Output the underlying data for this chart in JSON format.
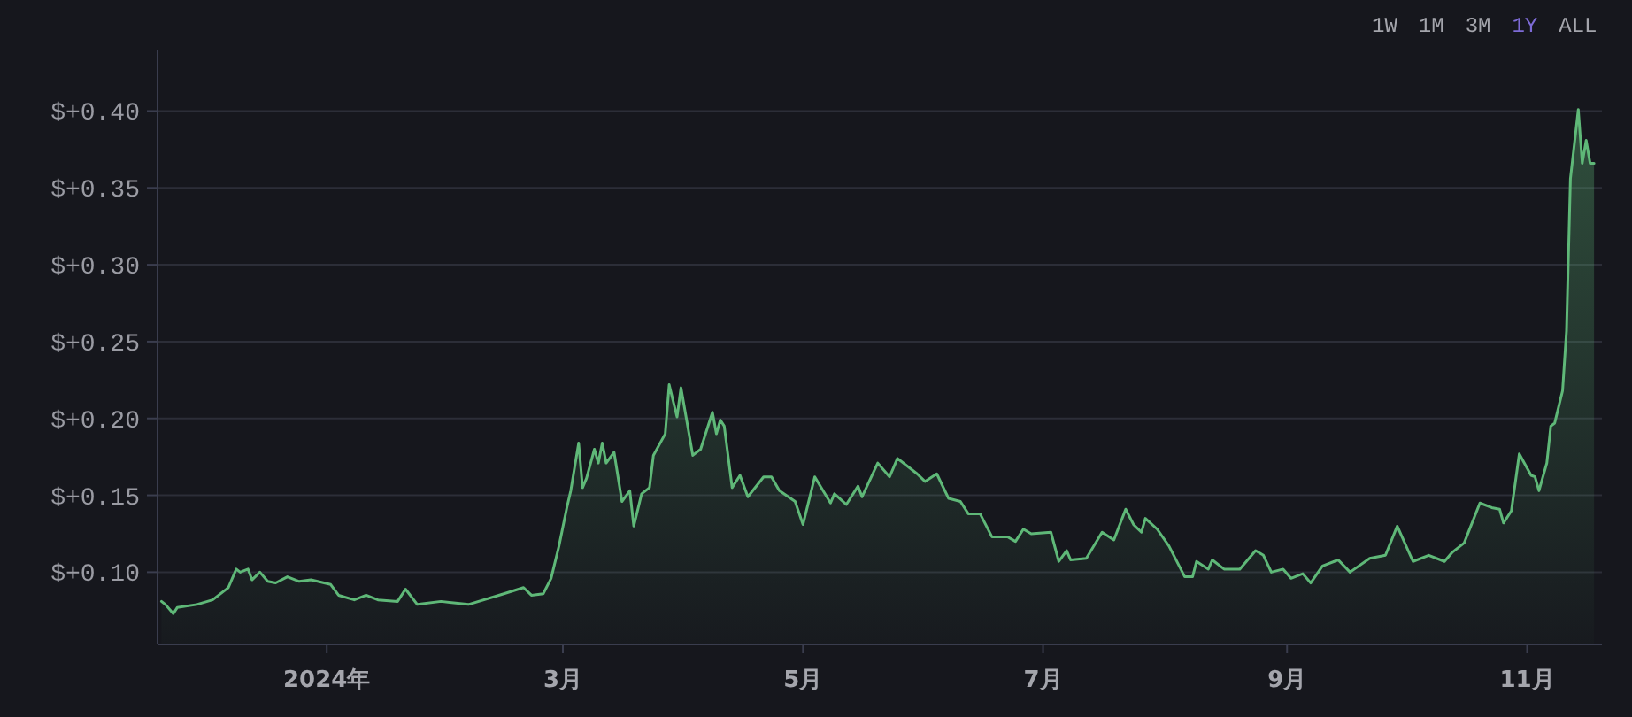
{
  "chart_data": {
    "type": "area",
    "xlim": [
      "2023-11-19",
      "2024-11-20"
    ],
    "xticks": [
      {
        "value": "2024-01-01",
        "label": "2024年"
      },
      {
        "value": "2024-03-01",
        "label": "3月"
      },
      {
        "value": "2024-05-01",
        "label": "5月"
      },
      {
        "value": "2024-07-01",
        "label": "7月"
      },
      {
        "value": "2024-09-01",
        "label": "9月"
      },
      {
        "value": "2024-11-01",
        "label": "11月"
      }
    ],
    "ylim": [
      0.053,
      0.44
    ],
    "yticks": [
      {
        "value": 0.1,
        "label": "$+0.10"
      },
      {
        "value": 0.15,
        "label": "$+0.15"
      },
      {
        "value": 0.2,
        "label": "$+0.20"
      },
      {
        "value": 0.25,
        "label": "$+0.25"
      },
      {
        "value": 0.3,
        "label": "$+0.30"
      },
      {
        "value": 0.35,
        "label": "$+0.35"
      },
      {
        "value": 0.4,
        "label": "$+0.40"
      }
    ],
    "grid": "y",
    "annotations": [
      "1W",
      "1M",
      "3M",
      "1Y",
      "ALL"
    ],
    "series": [
      {
        "color": "#5fb878",
        "x": [
          "2023-11-20",
          "2023-11-21",
          "2023-11-23",
          "2023-11-24",
          "2023-11-29",
          "2023-12-03",
          "2023-12-07",
          "2023-12-09",
          "2023-12-10",
          "2023-12-12",
          "2023-12-13",
          "2023-12-15",
          "2023-12-17",
          "2023-12-19",
          "2023-12-22",
          "2023-12-25",
          "2023-12-28",
          "2024-01-02",
          "2024-01-04",
          "2024-01-08",
          "2024-01-11",
          "2024-01-14",
          "2024-01-19",
          "2024-01-21",
          "2024-01-24",
          "2024-01-30",
          "2024-02-06",
          "2024-02-15",
          "2024-02-20",
          "2024-02-22",
          "2024-02-25",
          "2024-02-27",
          "2024-02-29",
          "2024-03-02",
          "2024-03-03",
          "2024-03-05",
          "2024-03-06",
          "2024-03-07",
          "2024-03-09",
          "2024-03-10",
          "2024-03-11",
          "2024-03-12",
          "2024-03-14",
          "2024-03-16",
          "2024-03-18",
          "2024-03-19",
          "2024-03-21",
          "2024-03-23",
          "2024-03-24",
          "2024-03-27",
          "2024-03-28",
          "2024-03-30",
          "2024-03-31",
          "2024-04-03",
          "2024-04-05",
          "2024-04-08",
          "2024-04-09",
          "2024-04-10",
          "2024-04-11",
          "2024-04-13",
          "2024-04-15",
          "2024-04-17",
          "2024-04-21",
          "2024-04-23",
          "2024-04-25",
          "2024-04-29",
          "2024-05-01",
          "2024-05-04",
          "2024-05-08",
          "2024-05-09",
          "2024-05-12",
          "2024-05-15",
          "2024-05-16",
          "2024-05-20",
          "2024-05-23",
          "2024-05-25",
          "2024-05-30",
          "2024-06-01",
          "2024-06-04",
          "2024-06-07",
          "2024-06-10",
          "2024-06-12",
          "2024-06-15",
          "2024-06-18",
          "2024-06-22",
          "2024-06-24",
          "2024-06-26",
          "2024-06-28",
          "2024-07-03",
          "2024-07-05",
          "2024-07-07",
          "2024-07-08",
          "2024-07-12",
          "2024-07-16",
          "2024-07-19",
          "2024-07-22",
          "2024-07-24",
          "2024-07-26",
          "2024-07-27",
          "2024-07-30",
          "2024-08-02",
          "2024-08-06",
          "2024-08-08",
          "2024-08-09",
          "2024-08-12",
          "2024-08-13",
          "2024-08-16",
          "2024-08-20",
          "2024-08-24",
          "2024-08-26",
          "2024-08-28",
          "2024-08-31",
          "2024-09-02",
          "2024-09-05",
          "2024-09-07",
          "2024-09-10",
          "2024-09-14",
          "2024-09-17",
          "2024-09-22",
          "2024-09-26",
          "2024-09-29",
          "2024-10-03",
          "2024-10-07",
          "2024-10-11",
          "2024-10-13",
          "2024-10-16",
          "2024-10-20",
          "2024-10-23",
          "2024-10-25",
          "2024-10-26",
          "2024-10-28",
          "2024-10-30",
          "2024-11-02",
          "2024-11-03",
          "2024-11-04",
          "2024-11-06",
          "2024-11-07",
          "2024-11-08",
          "2024-11-10",
          "2024-11-11",
          "2024-11-12",
          "2024-11-14",
          "2024-11-15",
          "2024-11-16",
          "2024-11-17",
          "2024-11-18"
        ],
        "values": [
          0.081,
          0.079,
          0.073,
          0.077,
          0.079,
          0.082,
          0.09,
          0.102,
          0.1,
          0.102,
          0.095,
          0.1,
          0.094,
          0.093,
          0.097,
          0.094,
          0.095,
          0.092,
          0.085,
          0.082,
          0.085,
          0.082,
          0.081,
          0.089,
          0.079,
          0.081,
          0.079,
          0.086,
          0.09,
          0.085,
          0.086,
          0.096,
          0.117,
          0.142,
          0.153,
          0.184,
          0.155,
          0.161,
          0.18,
          0.171,
          0.184,
          0.171,
          0.178,
          0.146,
          0.153,
          0.13,
          0.151,
          0.155,
          0.176,
          0.19,
          0.222,
          0.201,
          0.22,
          0.176,
          0.18,
          0.204,
          0.19,
          0.199,
          0.195,
          0.155,
          0.163,
          0.149,
          0.162,
          0.162,
          0.153,
          0.146,
          0.131,
          0.162,
          0.145,
          0.151,
          0.144,
          0.156,
          0.149,
          0.171,
          0.162,
          0.174,
          0.164,
          0.159,
          0.164,
          0.148,
          0.146,
          0.138,
          0.138,
          0.123,
          0.123,
          0.12,
          0.128,
          0.125,
          0.126,
          0.107,
          0.114,
          0.108,
          0.109,
          0.126,
          0.121,
          0.141,
          0.131,
          0.126,
          0.135,
          0.128,
          0.117,
          0.097,
          0.097,
          0.107,
          0.102,
          0.108,
          0.102,
          0.102,
          0.114,
          0.111,
          0.1,
          0.102,
          0.096,
          0.099,
          0.093,
          0.104,
          0.108,
          0.1,
          0.109,
          0.111,
          0.13,
          0.107,
          0.111,
          0.107,
          0.113,
          0.119,
          0.145,
          0.142,
          0.141,
          0.132,
          0.14,
          0.177,
          0.163,
          0.162,
          0.153,
          0.171,
          0.195,
          0.197,
          0.218,
          0.257,
          0.356,
          0.401,
          0.366,
          0.381,
          0.366,
          0.366
        ]
      }
    ]
  }
}
